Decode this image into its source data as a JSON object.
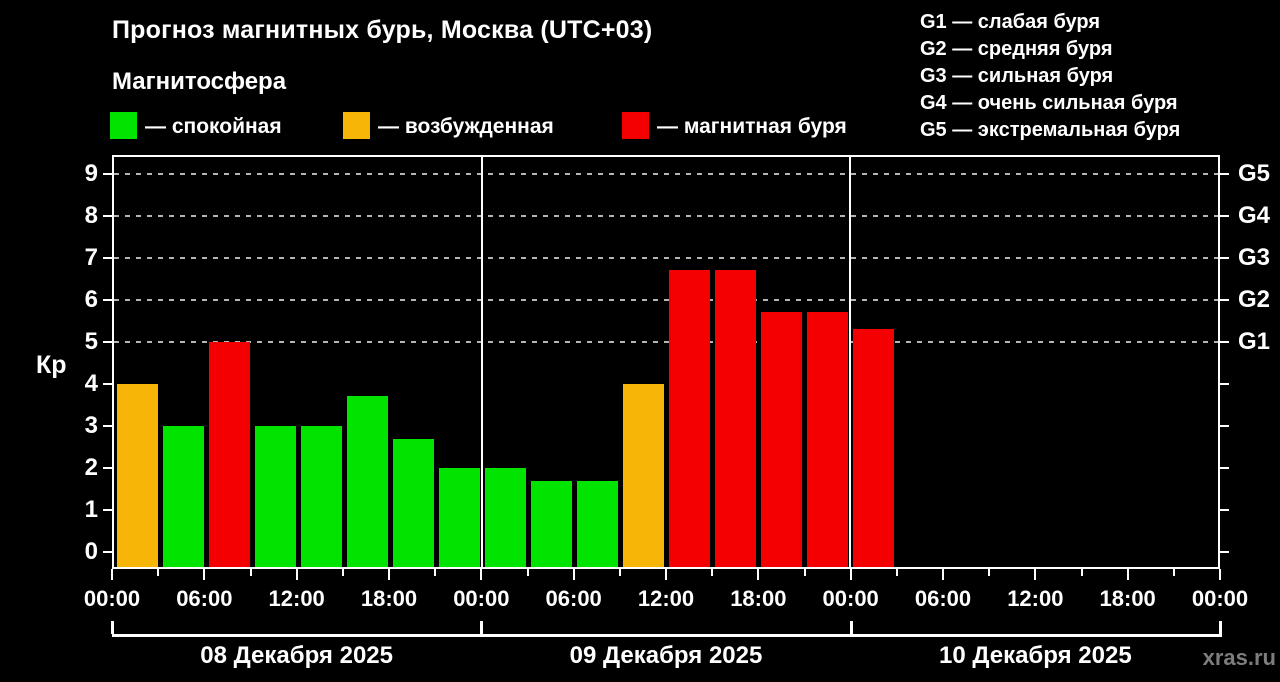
{
  "title": "Прогноз магнитных бурь, Москва (UTC+03)",
  "subtitle": "Магнитосфера",
  "watermark": "xras.ru",
  "colors": {
    "background": "#000000",
    "quiet": "#00e400",
    "excited": "#f7b507",
    "storm": "#f50000",
    "axis": "#ffffff",
    "grid": "#b5b5b5",
    "watermark_text": "#7d7d7d"
  },
  "legend": [
    {
      "status": "quiet",
      "label": "— спокойная"
    },
    {
      "status": "excited",
      "label": "— возбужденная"
    },
    {
      "status": "storm",
      "label": "— магнитная буря"
    }
  ],
  "storm_scale": [
    {
      "line": "G1 — слабая буря"
    },
    {
      "line": "G2 — средняя буря"
    },
    {
      "line": "G3 — сильная буря"
    },
    {
      "line": "G4 — очень сильная буря"
    },
    {
      "line": "G5 — экстремальная буря"
    }
  ],
  "chart_data": {
    "type": "bar",
    "title": "Прогноз магнитных бурь, Москва (UTC+03)",
    "ylabel": "Кр",
    "xlabel": "",
    "ylim": [
      0,
      9.4
    ],
    "yticks": [
      0,
      1,
      2,
      3,
      4,
      5,
      6,
      7,
      8,
      9
    ],
    "grid": "dashed horizontal lines at G-levels only",
    "legend_position": "top",
    "slot_hours": 3,
    "grid_levels": [
      {
        "label": "G1",
        "kp": 5
      },
      {
        "label": "G2",
        "kp": 6
      },
      {
        "label": "G3",
        "kp": 7
      },
      {
        "label": "G4",
        "kp": 8
      },
      {
        "label": "G5",
        "kp": 9
      }
    ],
    "time_tick_labels": [
      "00:00",
      "06:00",
      "12:00",
      "18:00",
      "00:00",
      "06:00",
      "12:00",
      "18:00",
      "00:00",
      "06:00",
      "12:00",
      "18:00",
      "00:00"
    ],
    "days": [
      {
        "date": "08 Декабря 2025",
        "bars": [
          {
            "time": "00:00",
            "kp": 4,
            "status": "excited"
          },
          {
            "time": "03:00",
            "kp": 3,
            "status": "quiet"
          },
          {
            "time": "06:00",
            "kp": 5,
            "status": "storm"
          },
          {
            "time": "09:00",
            "kp": 3,
            "status": "quiet"
          },
          {
            "time": "12:00",
            "kp": 3,
            "status": "quiet"
          },
          {
            "time": "15:00",
            "kp": 3.7,
            "status": "quiet"
          },
          {
            "time": "18:00",
            "kp": 2.7,
            "status": "quiet"
          },
          {
            "time": "21:00",
            "kp": 2,
            "status": "quiet"
          }
        ]
      },
      {
        "date": "09 Декабря 2025",
        "bars": [
          {
            "time": "00:00",
            "kp": 2,
            "status": "quiet"
          },
          {
            "time": "03:00",
            "kp": 1.7,
            "status": "quiet"
          },
          {
            "time": "06:00",
            "kp": 1.7,
            "status": "quiet"
          },
          {
            "time": "09:00",
            "kp": 4,
            "status": "excited"
          },
          {
            "time": "12:00",
            "kp": 6.7,
            "status": "storm"
          },
          {
            "time": "15:00",
            "kp": 6.7,
            "status": "storm"
          },
          {
            "time": "18:00",
            "kp": 5.7,
            "status": "storm"
          },
          {
            "time": "21:00",
            "kp": 5.7,
            "status": "storm"
          }
        ]
      },
      {
        "date": "10 Декабря 2025",
        "bars": [
          {
            "time": "00:00",
            "kp": 5.3,
            "status": "storm"
          }
        ]
      }
    ]
  }
}
